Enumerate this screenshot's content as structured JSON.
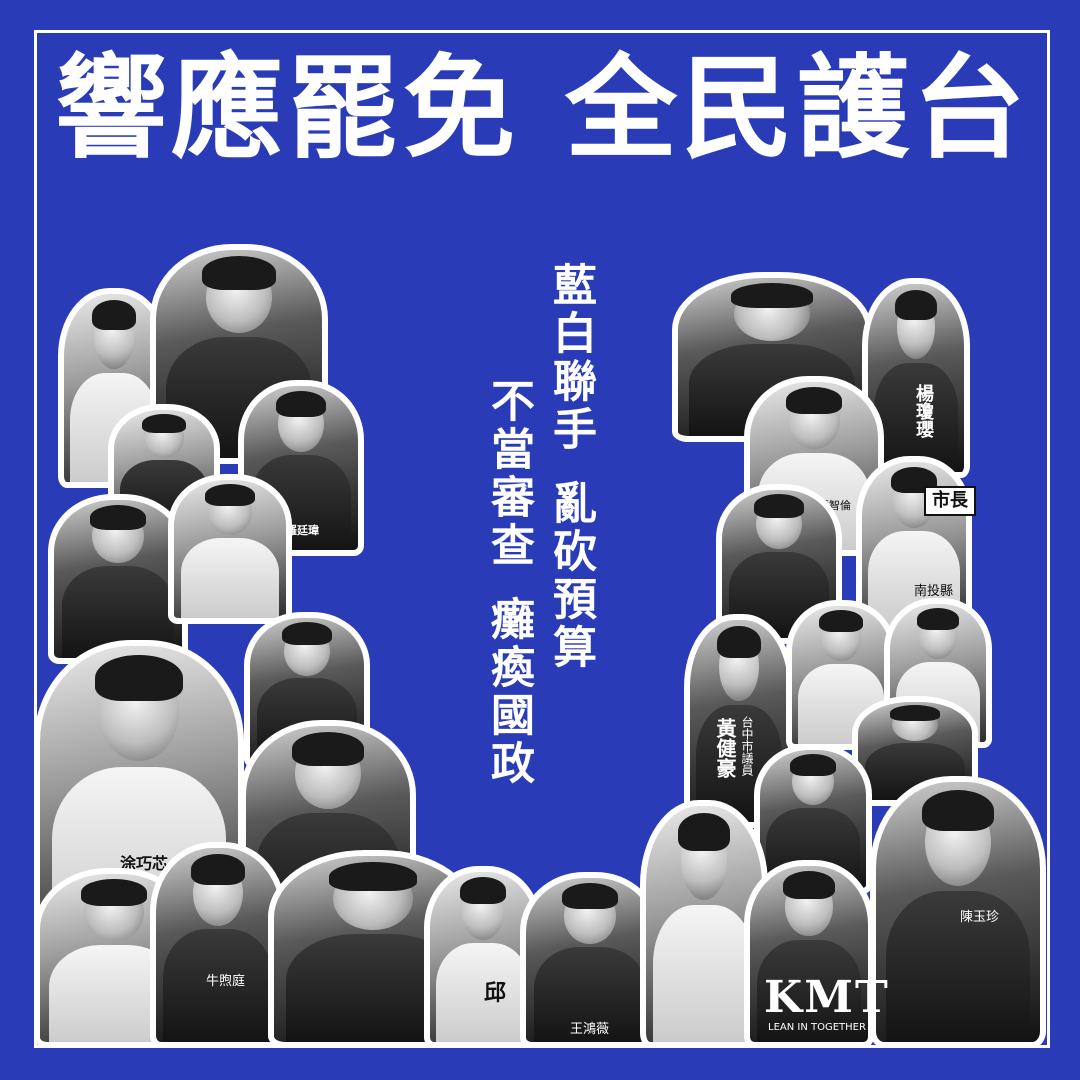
{
  "headline": {
    "part1": "響應罷免",
    "part2": "全民護台"
  },
  "slogan": {
    "right_column": {
      "line1": "藍白聯手",
      "line2": "亂砍預算"
    },
    "left_column": {
      "line1": "不當審查",
      "line2": "癱瘓國政"
    }
  },
  "photo_text": {
    "badge_lo_ting_wei": "羅廷瑋",
    "badge_yu_chiao_hsin": "涂巧芯",
    "badge_niu_hsu_ting": "牛煦庭",
    "badge_chiu": "邱",
    "badge_wang_hung_wei": "王鴻薇",
    "badge_yang_chiung_ying": "楊瓊瓔",
    "badge_chang_chih_lun": "張智倫",
    "sign_mayor": "市長",
    "badge_nantou": "南投縣",
    "badge_huang_chien_hao": "黃健豪",
    "badge_taichung_councilor": "台中市議員",
    "badge_chen_yu_chen": "陳玉珍",
    "shirt_kmt": "KMT",
    "shirt_motto": "LEAN IN TOGETHER"
  },
  "colors": {
    "background": "#2a3bb8",
    "frame": "#ffffff",
    "text": "#ffffff"
  }
}
